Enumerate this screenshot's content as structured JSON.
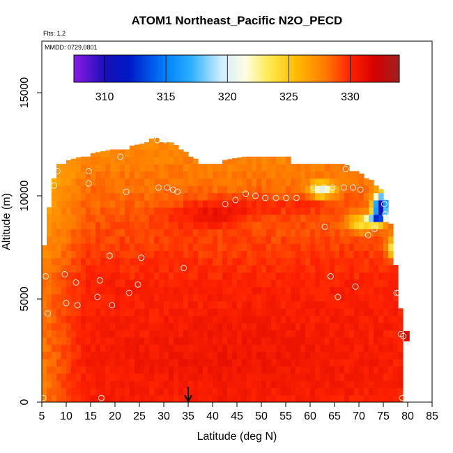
{
  "chart_data": {
    "type": "heatmap",
    "title": "ATOM1 Northeast_Pacific N2O_PECD",
    "flights_label": "Flts: 1,2",
    "date_label": "MMDD: 0729,0801",
    "xlabel": "Latitude (deg N)",
    "ylabel": "Altitude (m)",
    "xlim": [
      5,
      85
    ],
    "ylim": [
      0,
      17500
    ],
    "x_ticks": [
      5,
      10,
      15,
      20,
      25,
      30,
      35,
      40,
      45,
      50,
      55,
      60,
      65,
      70,
      75,
      80,
      85
    ],
    "y_ticks": [
      0,
      5000,
      10000,
      15000
    ],
    "colorbar": {
      "range": [
        307.5,
        334
      ],
      "ticks": [
        310,
        315,
        320,
        325,
        330
      ],
      "stops": [
        {
          "v": 307.5,
          "c": "#8b1ae6"
        },
        {
          "v": 310,
          "c": "#1a0fb8"
        },
        {
          "v": 312,
          "c": "#0018c8"
        },
        {
          "v": 315,
          "c": "#0080ff"
        },
        {
          "v": 317,
          "c": "#2aaeff"
        },
        {
          "v": 319.5,
          "c": "#cfeeff"
        },
        {
          "v": 321.5,
          "c": "#fffde0"
        },
        {
          "v": 323.5,
          "c": "#ffe84a"
        },
        {
          "v": 325.5,
          "c": "#ffbe00"
        },
        {
          "v": 328,
          "c": "#ff7a00"
        },
        {
          "v": 330,
          "c": "#ff2200"
        },
        {
          "v": 332,
          "c": "#d40000"
        },
        {
          "v": 334,
          "c": "#a21f1f"
        }
      ]
    },
    "field_model": {
      "base_value": 330.2,
      "coast_decrement": 2.2,
      "upper_decrement": 3.0,
      "upper_start_altitude": 5500,
      "upper_full_altitude": 13000,
      "mid_low_bump": 0.5,
      "band_peak_latitude": 40,
      "band_peak_altitude": 9200,
      "band_latitude_width": 9,
      "band_altitude_width": 700,
      "band_strength": 2.2,
      "north_anomalies": [
        {
          "lat": 62.5,
          "alt": 10300,
          "dlat": 2.5,
          "dalt": 350,
          "delta": -8
        },
        {
          "lat": 74.5,
          "alt": 9500,
          "dlat": 1.5,
          "dalt": 600,
          "delta": -20
        },
        {
          "lat": 73.5,
          "alt": 8900,
          "dlat": 1.7,
          "dalt": 250,
          "delta": -10
        },
        {
          "lat": 70.5,
          "alt": 8700,
          "dlat": 3,
          "dalt": 450,
          "delta": -5
        },
        {
          "lat": 77,
          "alt": 7500,
          "dlat": 1.2,
          "dalt": 500,
          "delta": -7
        }
      ]
    },
    "domain_boundary": {
      "top_altitude_by_latitude": [
        {
          "lat": 5,
          "alt": 6400
        },
        {
          "lat": 6,
          "alt": 8500
        },
        {
          "lat": 7,
          "alt": 10200
        },
        {
          "lat": 8,
          "alt": 11400
        },
        {
          "lat": 15,
          "alt": 11900
        },
        {
          "lat": 26,
          "alt": 12400
        },
        {
          "lat": 28,
          "alt": 12700
        },
        {
          "lat": 32,
          "alt": 12400
        },
        {
          "lat": 38,
          "alt": 11400
        },
        {
          "lat": 50,
          "alt": 11900
        },
        {
          "lat": 55,
          "alt": 11900
        },
        {
          "lat": 57,
          "alt": 11400
        },
        {
          "lat": 67,
          "alt": 11400
        },
        {
          "lat": 70,
          "alt": 11000
        },
        {
          "lat": 74,
          "alt": 10400
        },
        {
          "lat": 76,
          "alt": 9500
        },
        {
          "lat": 77,
          "alt": 7500
        },
        {
          "lat": 78,
          "alt": 5800
        },
        {
          "lat": 79,
          "alt": 3300
        },
        {
          "lat": 79.5,
          "alt": 0
        }
      ]
    },
    "observation_points": [
      {
        "lat": 5.3,
        "alt": 200
      },
      {
        "lat": 5.8,
        "alt": 6100
      },
      {
        "lat": 6.2,
        "alt": 4300
      },
      {
        "lat": 7.5,
        "alt": 10500
      },
      {
        "lat": 8.2,
        "alt": 11200
      },
      {
        "lat": 9.7,
        "alt": 6200
      },
      {
        "lat": 10.0,
        "alt": 4800
      },
      {
        "lat": 12.0,
        "alt": 5800
      },
      {
        "lat": 12.3,
        "alt": 4700
      },
      {
        "lat": 14.6,
        "alt": 11200
      },
      {
        "lat": 14.6,
        "alt": 10600
      },
      {
        "lat": 16.4,
        "alt": 5100
      },
      {
        "lat": 16.9,
        "alt": 5900
      },
      {
        "lat": 17.2,
        "alt": 200
      },
      {
        "lat": 18.9,
        "alt": 7100
      },
      {
        "lat": 19.4,
        "alt": 4700
      },
      {
        "lat": 21.1,
        "alt": 11900
      },
      {
        "lat": 22.3,
        "alt": 10200
      },
      {
        "lat": 22.9,
        "alt": 5300
      },
      {
        "lat": 24.7,
        "alt": 5700
      },
      {
        "lat": 25.4,
        "alt": 7000
      },
      {
        "lat": 28.7,
        "alt": 12700
      },
      {
        "lat": 28.9,
        "alt": 10400
      },
      {
        "lat": 30.3,
        "alt": 12700
      },
      {
        "lat": 30.7,
        "alt": 10400
      },
      {
        "lat": 31.9,
        "alt": 10300
      },
      {
        "lat": 32.8,
        "alt": 10200
      },
      {
        "lat": 34.1,
        "alt": 6500
      },
      {
        "lat": 42.6,
        "alt": 9600
      },
      {
        "lat": 44.7,
        "alt": 9800
      },
      {
        "lat": 46.8,
        "alt": 10100
      },
      {
        "lat": 48.8,
        "alt": 10000
      },
      {
        "lat": 50.8,
        "alt": 9900
      },
      {
        "lat": 53.0,
        "alt": 9900
      },
      {
        "lat": 55.1,
        "alt": 9900
      },
      {
        "lat": 57.2,
        "alt": 9900
      },
      {
        "lat": 60.8,
        "alt": 10400
      },
      {
        "lat": 62.9,
        "alt": 10400
      },
      {
        "lat": 64.6,
        "alt": 10400
      },
      {
        "lat": 63.0,
        "alt": 8500
      },
      {
        "lat": 64.2,
        "alt": 6100
      },
      {
        "lat": 65.7,
        "alt": 5100
      },
      {
        "lat": 66.9,
        "alt": 10400
      },
      {
        "lat": 67.3,
        "alt": 11300
      },
      {
        "lat": 68.8,
        "alt": 10400
      },
      {
        "lat": 69.3,
        "alt": 5600
      },
      {
        "lat": 70.3,
        "alt": 10300
      },
      {
        "lat": 71.9,
        "alt": 8100
      },
      {
        "lat": 73.2,
        "alt": 8400
      },
      {
        "lat": 75.2,
        "alt": 9600
      },
      {
        "lat": 75.4,
        "alt": 9100
      },
      {
        "lat": 77.7,
        "alt": 5300
      },
      {
        "lat": 78.1,
        "alt": 5300
      },
      {
        "lat": 78.6,
        "alt": 3300
      },
      {
        "lat": 78.9,
        "alt": 200
      },
      {
        "lat": 79.1,
        "alt": 3200
      }
    ],
    "marker": {
      "lat": 35,
      "label": "down-arrow at 35 deg N"
    }
  }
}
